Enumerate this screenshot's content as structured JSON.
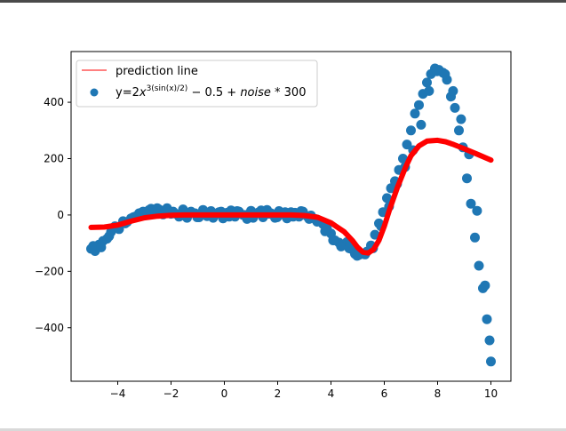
{
  "window": {
    "top_strip_color": "#4a4a4a"
  },
  "chart_data": {
    "type": "scatter",
    "title": "",
    "xlabel": "",
    "ylabel": "",
    "xlim": [
      -5.75,
      10.75
    ],
    "ylim": [
      -590,
      580
    ],
    "xticks": [
      -4,
      -2,
      0,
      2,
      4,
      6,
      8,
      10
    ],
    "xtick_labels": [
      "−4",
      "−2",
      "0",
      "2",
      "4",
      "6",
      "8",
      "10"
    ],
    "yticks": [
      -400,
      -200,
      0,
      200,
      400
    ],
    "ytick_labels": [
      "−400",
      "−200",
      "0",
      "200",
      "400"
    ],
    "grid": false,
    "legend_position": "upper-left",
    "legend": {
      "line_label": "prediction line",
      "scatter_label_prefix": "y=2",
      "scatter_label_x": "x",
      "scatter_label_sup": "3(sin(x)/2)",
      "scatter_label_suffix": " − 0.5 + ",
      "scatter_label_noise": "noise",
      "scatter_label_tail": " * 300"
    },
    "series": [
      {
        "name": "prediction line",
        "kind": "line",
        "color": "#ff0000",
        "x": [
          -5.0,
          -4.5,
          -4.0,
          -3.5,
          -3.0,
          -2.5,
          -2.0,
          -1.5,
          -1.0,
          -0.5,
          0.0,
          0.5,
          1.0,
          1.5,
          2.0,
          2.5,
          3.0,
          3.5,
          4.0,
          4.5,
          4.8,
          5.0,
          5.2,
          5.4,
          5.6,
          5.8,
          6.0,
          6.2,
          6.5,
          6.8,
          7.0,
          7.3,
          7.6,
          8.0,
          8.3,
          8.6,
          9.0,
          9.5,
          10.0
        ],
        "y": [
          -44,
          -43,
          -36,
          -22,
          -10,
          -4,
          -1,
          0,
          0,
          0,
          0,
          0,
          0,
          0,
          0,
          0,
          -2,
          -8,
          -28,
          -60,
          -90,
          -115,
          -132,
          -135,
          -122,
          -90,
          -40,
          20,
          100,
          170,
          210,
          245,
          262,
          265,
          260,
          250,
          235,
          215,
          195
        ]
      },
      {
        "name": "y=2x^{3(sin(x)/2)} − 0.5 + noise * 300",
        "kind": "scatter",
        "color": "#1f77b4",
        "x": [
          -5.0,
          -4.85,
          -4.7,
          -4.55,
          -4.4,
          -4.25,
          -4.1,
          -3.95,
          -3.8,
          -3.65,
          -3.5,
          -3.35,
          -3.2,
          -3.05,
          -2.9,
          -2.75,
          -2.6,
          -2.45,
          -2.3,
          -2.15,
          -2.0,
          -1.85,
          -1.7,
          -1.55,
          -1.4,
          -1.25,
          -1.1,
          -0.95,
          -0.8,
          -0.65,
          -0.5,
          -0.35,
          -0.2,
          -0.05,
          0.1,
          0.25,
          0.4,
          0.55,
          0.7,
          0.85,
          1.0,
          1.15,
          1.3,
          1.45,
          1.6,
          1.75,
          1.9,
          2.05,
          2.2,
          2.35,
          2.5,
          2.65,
          2.8,
          2.95,
          3.1,
          3.25,
          3.4,
          3.55,
          3.7,
          3.85,
          4.0,
          4.15,
          4.3,
          4.45,
          4.6,
          4.75,
          4.9,
          5.05,
          5.2,
          5.35,
          5.5,
          5.65,
          5.8,
          5.95,
          6.1,
          6.25,
          6.4,
          6.55,
          6.7,
          6.85,
          7.0,
          7.15,
          7.3,
          7.45,
          7.6,
          7.75,
          7.9,
          8.05,
          8.2,
          8.35,
          8.5,
          8.65,
          8.8,
          8.95,
          9.1,
          9.25,
          9.4,
          9.55,
          9.7,
          9.85,
          10.0,
          -4.92,
          -4.62,
          -4.32,
          -4.02,
          -3.72,
          -3.42,
          -3.12,
          -2.82,
          -2.52,
          -2.22,
          -1.92,
          -1.62,
          -1.32,
          -1.02,
          -0.72,
          -0.42,
          -0.12,
          0.18,
          0.48,
          0.78,
          1.08,
          1.38,
          1.68,
          1.98,
          2.28,
          2.58,
          2.88,
          3.18,
          3.48,
          3.78,
          4.08,
          4.38,
          4.68,
          4.98,
          5.28,
          5.58,
          5.88,
          6.18,
          6.48,
          6.78,
          7.08,
          7.38,
          7.68,
          7.98,
          8.28,
          8.58,
          8.88,
          9.18,
          9.48,
          9.78,
          9.95
        ],
        "y": [
          -120,
          -128,
          -105,
          -92,
          -84,
          -60,
          -40,
          -50,
          -22,
          -25,
          -12,
          -6,
          6,
          12,
          10,
          22,
          14,
          20,
          2,
          24,
          4,
          5,
          -6,
          20,
          -10,
          12,
          6,
          -8,
          18,
          -4,
          14,
          2,
          10,
          -12,
          8,
          16,
          -6,
          12,
          0,
          -14,
          15,
          4,
          10,
          -8,
          18,
          6,
          -10,
          14,
          2,
          -12,
          10,
          8,
          -6,
          12,
          -4,
          -2,
          -14,
          -20,
          -32,
          -48,
          -66,
          -90,
          -98,
          -106,
          -96,
          -120,
          -138,
          -142,
          -138,
          -130,
          -108,
          -70,
          -30,
          10,
          60,
          95,
          120,
          160,
          200,
          250,
          300,
          360,
          390,
          430,
          470,
          500,
          520,
          515,
          505,
          480,
          420,
          380,
          300,
          240,
          130,
          40,
          -80,
          -180,
          -260,
          -370,
          -520,
          -110,
          -115,
          -75,
          -42,
          -30,
          -8,
          8,
          18,
          24,
          16,
          12,
          -2,
          6,
          -8,
          10,
          -10,
          12,
          -6,
          14,
          0,
          -10,
          16,
          4,
          -8,
          10,
          -6,
          14,
          -14,
          -24,
          -58,
          -90,
          -112,
          -118,
          -145,
          -140,
          -118,
          -40,
          30,
          110,
          170,
          230,
          320,
          440,
          510,
          500,
          440,
          340,
          215,
          15,
          -250,
          -445
        ]
      }
    ]
  }
}
